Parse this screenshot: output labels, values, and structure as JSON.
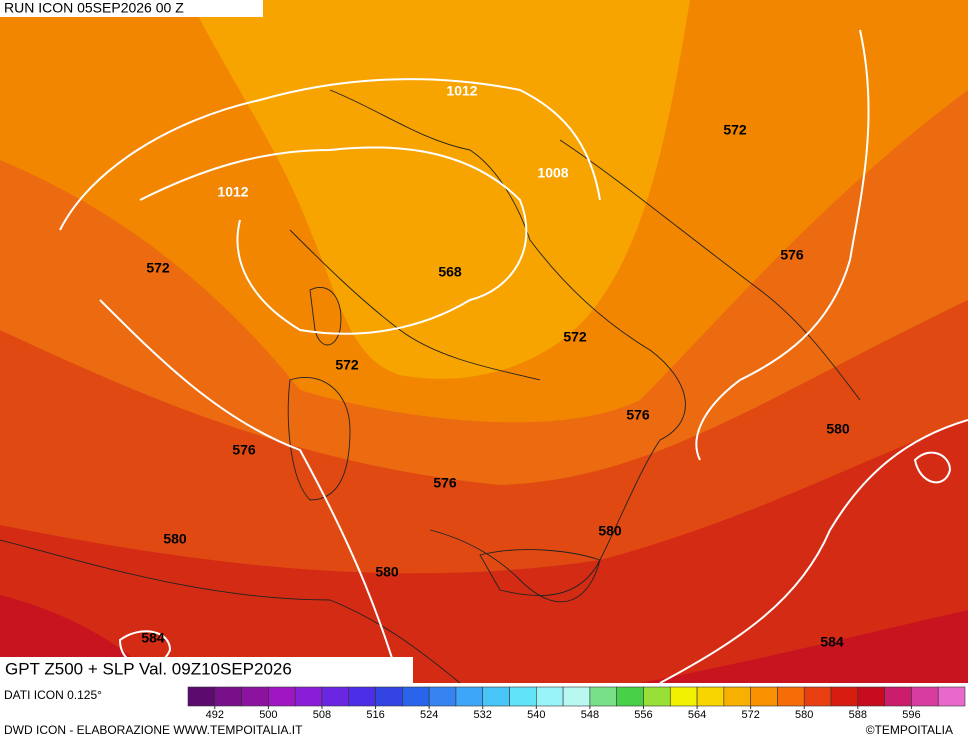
{
  "header": {
    "run": "RUN ICON 05SEP2026 00 Z",
    "title": "GPT Z500 + SLP Val. 09Z10SEP2026"
  },
  "contour_labels": [
    "1012",
    "1012",
    "1008",
    "572",
    "568",
    "572",
    "572",
    "576",
    "576",
    "576",
    "576",
    "580",
    "580",
    "580",
    "580",
    "584",
    "584"
  ],
  "colorbar": {
    "caption": "DATI ICON 0.125°",
    "range": [
      488,
      604
    ],
    "colors": [
      "#5c0a6e",
      "#78108a",
      "#8c12a0",
      "#a016c0",
      "#8a1ed8",
      "#6a26e0",
      "#4c2ee6",
      "#3444e2",
      "#2a64ea",
      "#3684f2",
      "#3ea6f8",
      "#48c6f8",
      "#60e4f8",
      "#98f4f8",
      "#b8f8f0",
      "#78e088",
      "#48d048",
      "#98e038",
      "#f0f000",
      "#f8d400",
      "#f8b000",
      "#f89000",
      "#f86c08",
      "#e84010",
      "#d81c10",
      "#c80c20",
      "#cc1c6c",
      "#d83ca0",
      "#e868cc"
    ],
    "ticks": [
      492,
      500,
      508,
      516,
      524,
      532,
      540,
      548,
      556,
      564,
      572,
      580,
      588,
      596
    ]
  },
  "footer": {
    "credits": "DWD ICON - ELABORAZIONE WWW.TEMPOITALIA.IT",
    "copyright": "©TEMPOITALIA"
  }
}
